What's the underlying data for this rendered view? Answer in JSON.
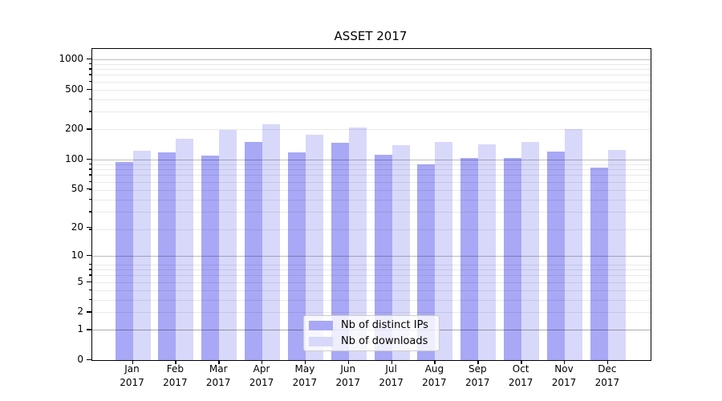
{
  "chart_data": {
    "type": "bar",
    "title": "ASSET 2017",
    "categories": [
      "Jan",
      "Feb",
      "Mar",
      "Apr",
      "May",
      "Jun",
      "Jul",
      "Aug",
      "Sep",
      "Oct",
      "Nov",
      "Dec"
    ],
    "category_year": "2017",
    "series": [
      {
        "name": "Nb of distinct IPs",
        "color": "#a8a8f6",
        "values": [
          94,
          117,
          109,
          149,
          118,
          147,
          110,
          89,
          102,
          102,
          119,
          82
        ]
      },
      {
        "name": "Nb of downloads",
        "color": "#d8d8fa",
        "values": [
          122,
          160,
          197,
          223,
          177,
          210,
          138,
          150,
          140,
          149,
          200,
          125
        ]
      }
    ],
    "xlabel": "",
    "ylabel": "",
    "yscale": "log10(value+1)",
    "ylim": [
      0,
      1270
    ],
    "y_tick_values": [
      0,
      1,
      2,
      5,
      10,
      20,
      50,
      100,
      200,
      500,
      1000
    ],
    "y_major_gridline_values": [
      1,
      10,
      100,
      1000
    ],
    "grid": "both",
    "legend_position": "lower center",
    "background_color": "#ffffff"
  }
}
